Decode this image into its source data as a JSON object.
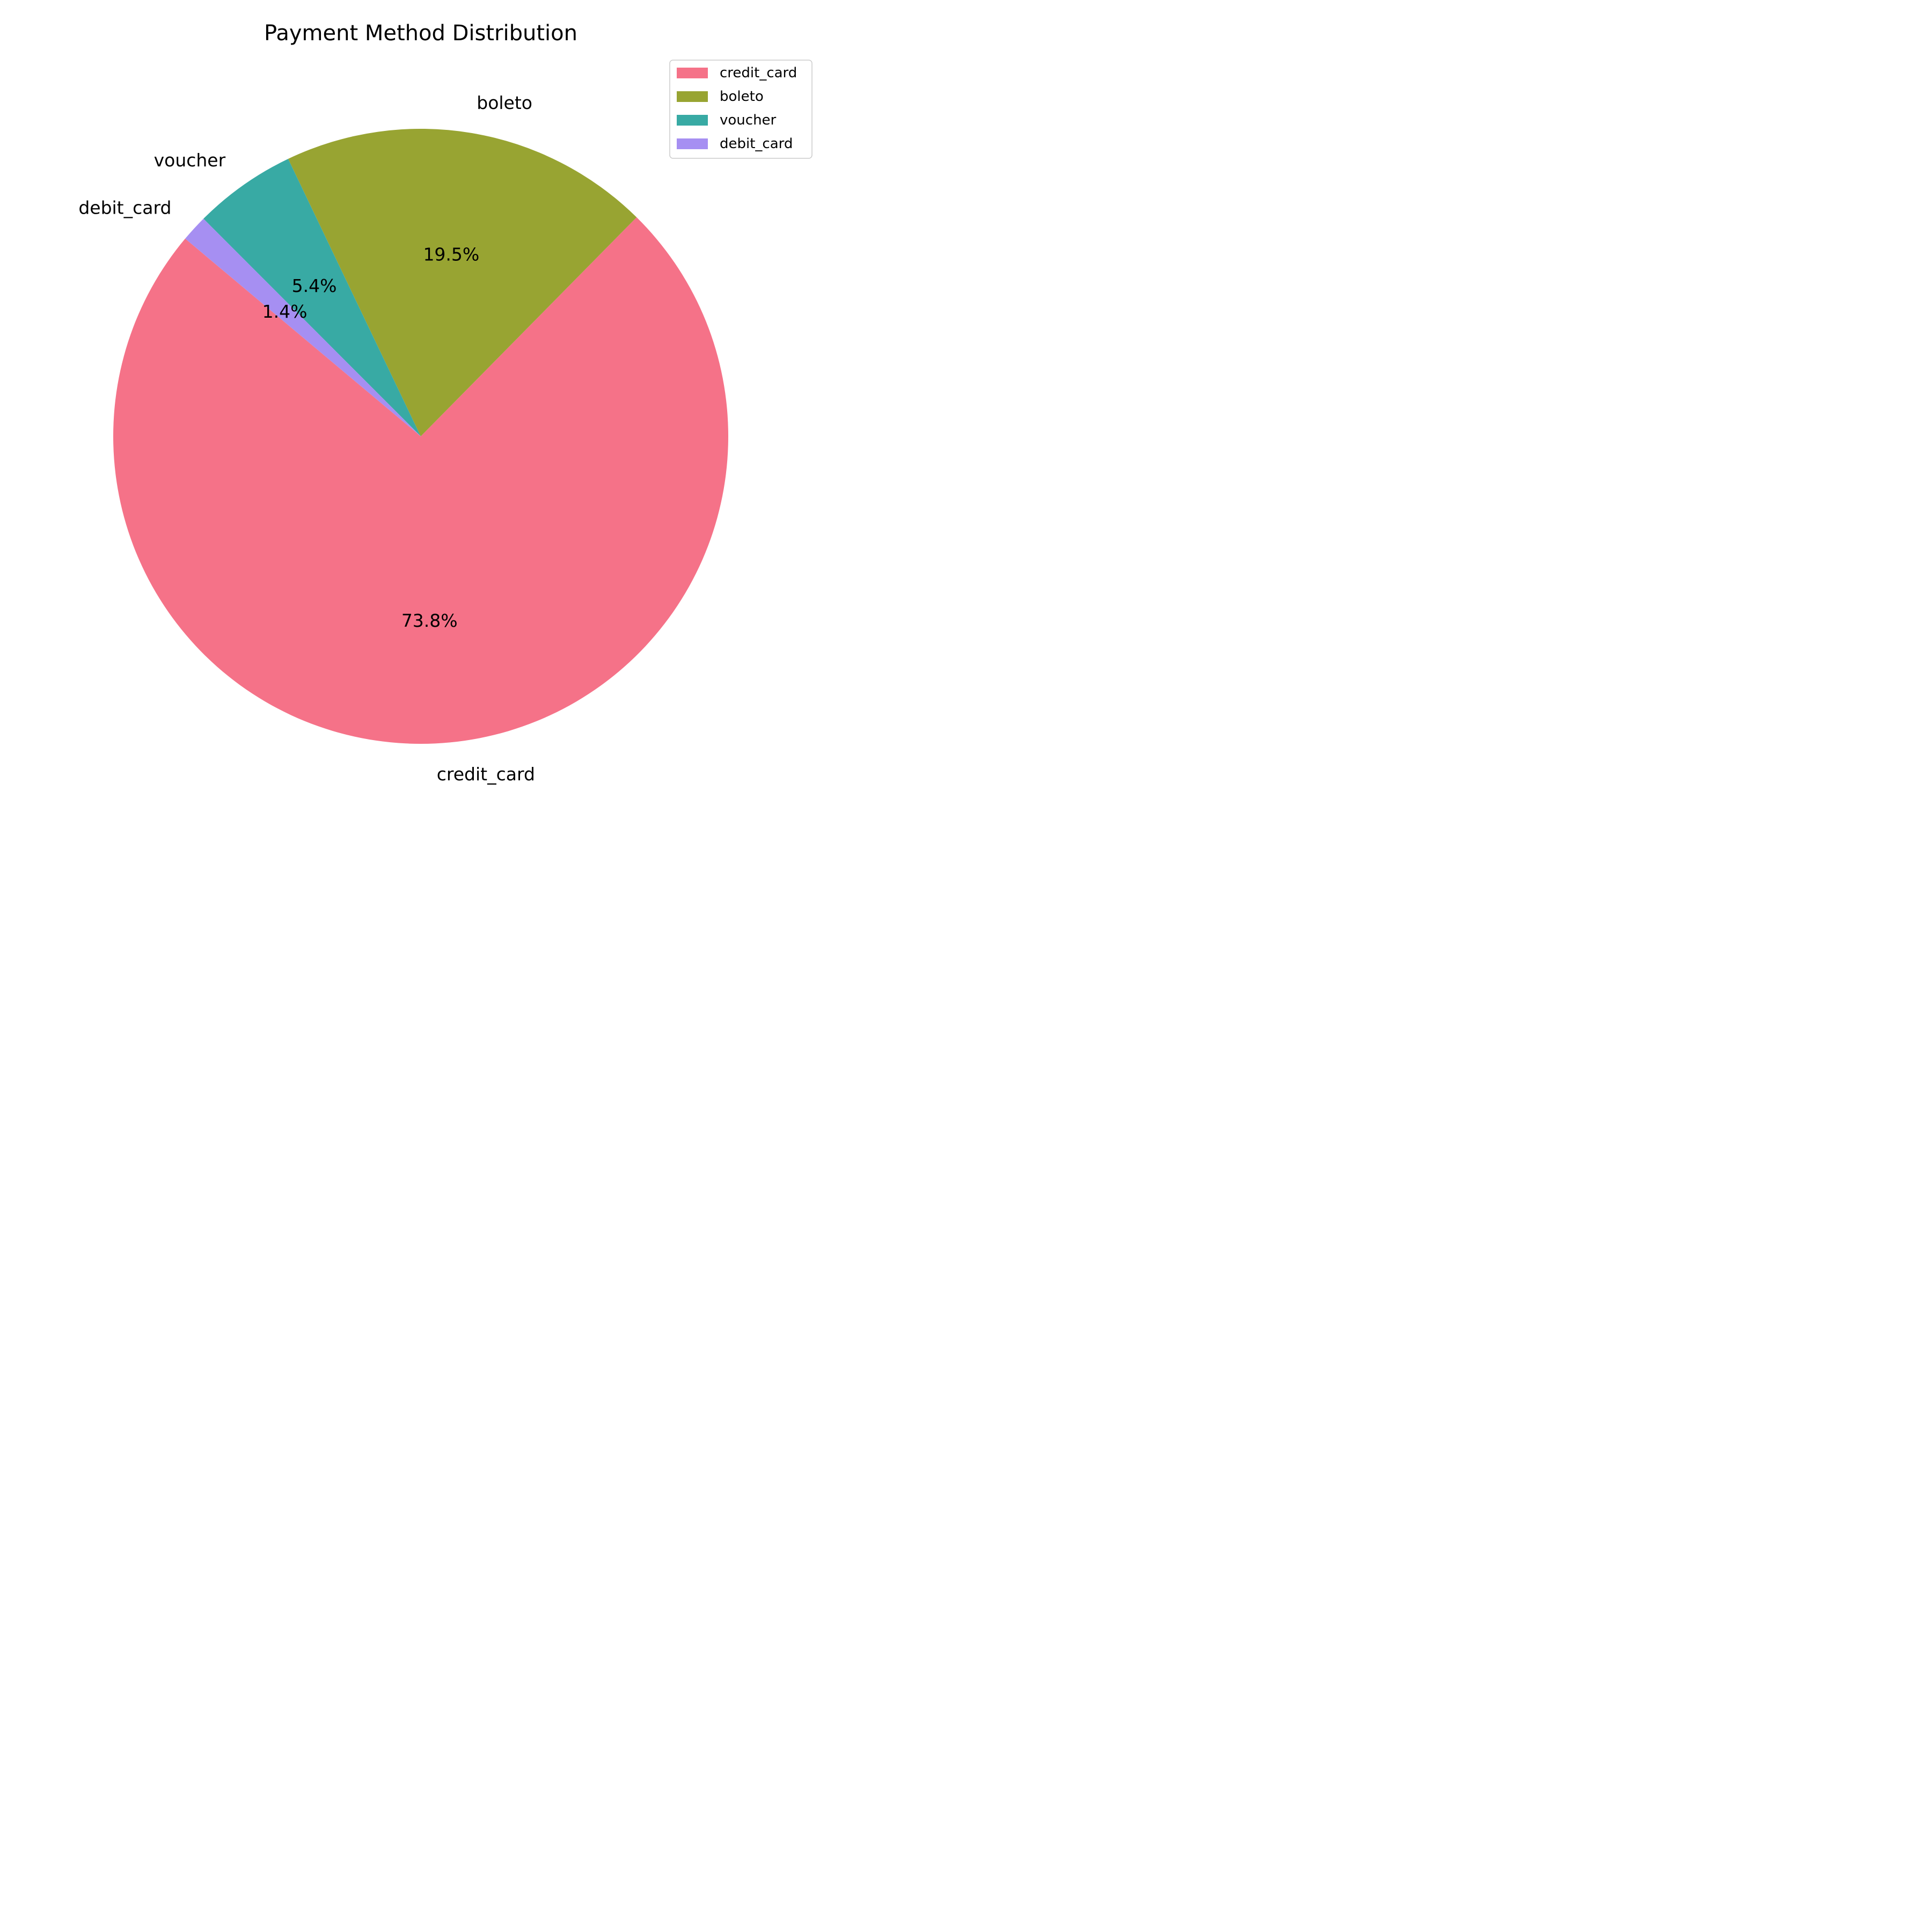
{
  "chart_data": {
    "type": "pie",
    "title": "Payment Method Distribution",
    "labels": [
      "credit_card",
      "boleto",
      "voucher",
      "debit_card"
    ],
    "values": [
      73.8,
      19.5,
      5.4,
      1.4
    ],
    "percent_labels": [
      "73.8%",
      "19.5%",
      "5.4%",
      "1.4%"
    ],
    "colors": [
      "#f57288",
      "#98a432",
      "#38aaa4",
      "#a68ff2"
    ],
    "start_angle_deg": 140,
    "direction": "counterclockwise",
    "legend": {
      "position": "top-right",
      "entries": [
        "credit_card",
        "boleto",
        "voucher",
        "debit_card"
      ]
    }
  }
}
